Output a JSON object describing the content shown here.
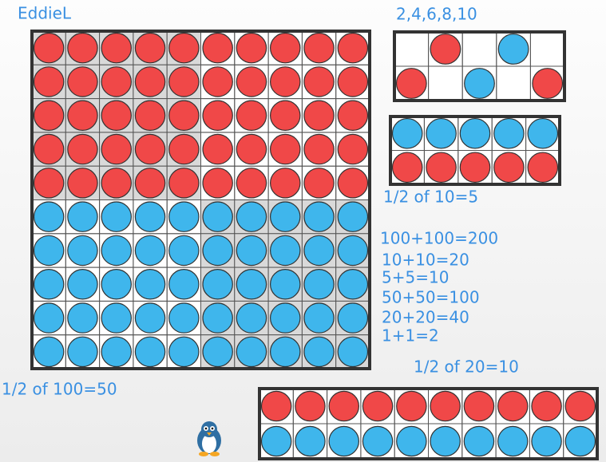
{
  "name": "EddieL",
  "sequence": "2,4,6,8,10",
  "half_of_10": "1/2 of 10=5",
  "equations": [
    "100+100=200",
    "10+10=20",
    "5+5=10",
    "50+50=100",
    "20+20=40",
    "1+1=2"
  ],
  "half_of_20": "1/2 of 20=10",
  "half_of_100": "1/2 of 100=50"
}
